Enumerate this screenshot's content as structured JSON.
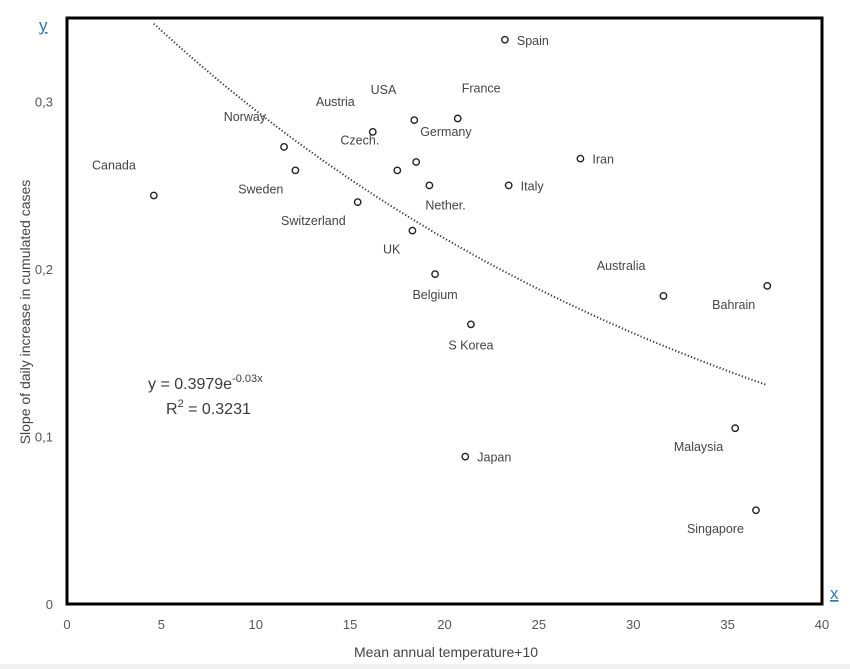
{
  "chart_data": {
    "type": "scatter",
    "xlabel": "Mean annual temperature+10",
    "ylabel": "Slope of daily increase in cumulated cases",
    "x_axis_letter": "x",
    "y_axis_letter": "y",
    "xlim": [
      0,
      40
    ],
    "ylim": [
      0,
      0.35
    ],
    "x_ticks": [
      {
        "value": 0,
        "label": "0"
      },
      {
        "value": 5,
        "label": "5"
      },
      {
        "value": 10,
        "label": "10"
      },
      {
        "value": 15,
        "label": "15"
      },
      {
        "value": 20,
        "label": "20"
      },
      {
        "value": 25,
        "label": "25"
      },
      {
        "value": 30,
        "label": "30"
      },
      {
        "value": 35,
        "label": "35"
      },
      {
        "value": 40,
        "label": "40"
      }
    ],
    "y_ticks": [
      {
        "value": 0,
        "label": "0"
      },
      {
        "value": 0.1,
        "label": "0,1"
      },
      {
        "value": 0.2,
        "label": "0,2"
      },
      {
        "value": 0.3,
        "label": "0,3"
      }
    ],
    "grid": false,
    "points": [
      {
        "name": "Spain",
        "x": 23.2,
        "y": 0.337,
        "label_pos": "right"
      },
      {
        "name": "USA",
        "x": 18.4,
        "y": 0.289,
        "label_pos": "above-left"
      },
      {
        "name": "France",
        "x": 20.7,
        "y": 0.29,
        "label_pos": "above-right"
      },
      {
        "name": "Austria",
        "x": 16.2,
        "y": 0.282,
        "label_pos": "above-left"
      },
      {
        "name": "Norway",
        "x": 11.5,
        "y": 0.273,
        "label_pos": "above-left"
      },
      {
        "name": "Canada",
        "x": 4.6,
        "y": 0.244,
        "label_pos": "above-left"
      },
      {
        "name": "Sweden",
        "x": 12.1,
        "y": 0.259,
        "label_pos": "below-left"
      },
      {
        "name": "Czech.",
        "x": 17.5,
        "y": 0.259,
        "label_pos": "above-left"
      },
      {
        "name": "Germany",
        "x": 18.5,
        "y": 0.264,
        "label_pos": "above-right"
      },
      {
        "name": "Nether.",
        "x": 19.2,
        "y": 0.25,
        "label_pos": "below-right"
      },
      {
        "name": "Italy",
        "x": 23.4,
        "y": 0.25,
        "label_pos": "right"
      },
      {
        "name": "Iran",
        "x": 27.2,
        "y": 0.266,
        "label_pos": "right"
      },
      {
        "name": "Switzerland",
        "x": 15.4,
        "y": 0.24,
        "label_pos": "below-left"
      },
      {
        "name": "UK",
        "x": 18.3,
        "y": 0.223,
        "label_pos": "below-left"
      },
      {
        "name": "Belgium",
        "x": 19.5,
        "y": 0.197,
        "label_pos": "below"
      },
      {
        "name": "S Korea",
        "x": 21.4,
        "y": 0.167,
        "label_pos": "below"
      },
      {
        "name": "Australia",
        "x": 31.6,
        "y": 0.184,
        "label_pos": "above-left"
      },
      {
        "name": "Bahrain",
        "x": 37.1,
        "y": 0.19,
        "label_pos": "below-left"
      },
      {
        "name": "Japan",
        "x": 21.1,
        "y": 0.088,
        "label_pos": "right"
      },
      {
        "name": "Malaysia",
        "x": 35.4,
        "y": 0.105,
        "label_pos": "below-left"
      },
      {
        "name": "Singapore",
        "x": 36.5,
        "y": 0.056,
        "label_pos": "below-left"
      }
    ],
    "trendline": {
      "type": "exponential",
      "a": 0.3979,
      "b": -0.03,
      "x_range": [
        4.6,
        37.1
      ],
      "style": "dotted",
      "equation_text": {
        "prefix": "y = 0.3979e",
        "exponent": "-0.03x"
      },
      "r2_text": {
        "prefix": "R",
        "sup": "2",
        "suffix": " = 0.3231"
      }
    }
  }
}
